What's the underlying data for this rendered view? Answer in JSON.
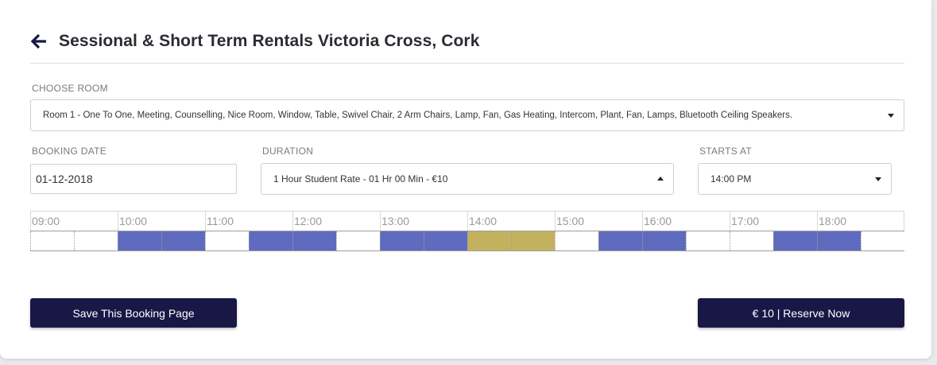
{
  "header": {
    "title": "Sessional & Short Term Rentals Victoria Cross, Cork",
    "back_icon": "arrow-left-icon"
  },
  "room": {
    "label": "CHOOSE ROOM",
    "selected": "Room 1 - One To One, Meeting, Counselling, Nice Room, Window, Table, Swivel Chair, 2 Arm Chairs, Lamp, Fan, Gas Heating, Intercom, Plant, Fan, Lamps, Bluetooth Ceiling Speakers."
  },
  "booking_date": {
    "label": "BOOKING DATE",
    "value": "01-12-2018"
  },
  "duration": {
    "label": "DURATION",
    "selected": "1 Hour Student Rate - 01 Hr 00 Min - €10"
  },
  "starts_at": {
    "label": "STARTS AT",
    "selected": "14:00 PM"
  },
  "timeline": {
    "hours": [
      "09:00",
      "10:00",
      "11:00",
      "12:00",
      "13:00",
      "14:00",
      "15:00",
      "16:00",
      "17:00",
      "18:00"
    ],
    "slots": [
      "free",
      "free",
      "booked",
      "booked",
      "free",
      "booked",
      "booked",
      "free",
      "booked",
      "booked",
      "selected",
      "selected",
      "free",
      "booked",
      "booked",
      "free",
      "free",
      "booked",
      "booked",
      "free"
    ],
    "colors": {
      "booked": "#5e6bbf",
      "selected": "#c4b15e",
      "free": "#ffffff"
    }
  },
  "actions": {
    "save_label": "Save This Booking Page",
    "reserve_label": "€ 10 | Reserve Now"
  },
  "colors": {
    "button_bg": "#191746",
    "title": "#2b2b33"
  }
}
